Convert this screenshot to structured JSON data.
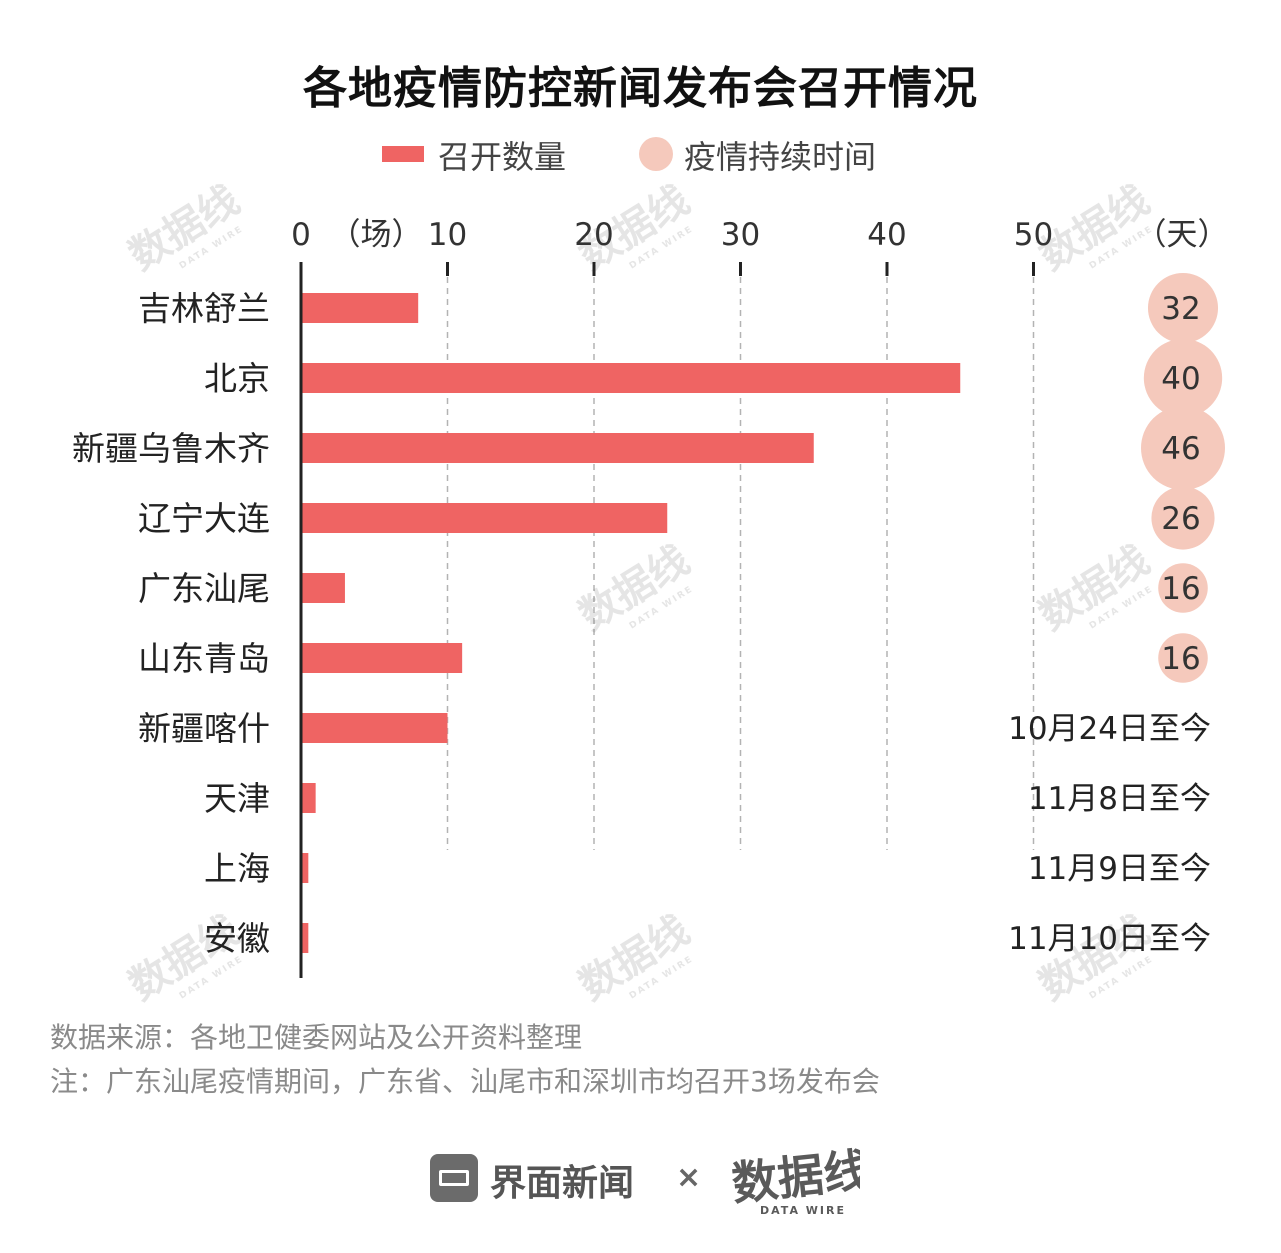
{
  "title": "各地疫情防控新闻发布会召开情况",
  "legend": {
    "bar_label": "召开数量",
    "dot_label": "疫情持续时间"
  },
  "colors": {
    "bar": "#ef6463",
    "bubble": "#f5c9bc",
    "axis": "#222222",
    "grid": "#b3b3b3"
  },
  "chart_data": {
    "type": "bar",
    "orientation": "horizontal",
    "x_unit_label": "（场）",
    "x_ticks": [
      "0",
      "10",
      "20",
      "30",
      "40",
      "50"
    ],
    "xlim": [
      0,
      50
    ],
    "grid": "vertical dashed",
    "categories": [
      "吉林舒兰",
      "北京",
      "新疆乌鲁木齐",
      "辽宁大连",
      "广东汕尾",
      "山东青岛",
      "新疆喀什",
      "天津",
      "上海",
      "安徽"
    ],
    "series": [
      {
        "name": "召开数量",
        "values": [
          8,
          45,
          35,
          25,
          3,
          11,
          10,
          1,
          0.5,
          0.5
        ]
      }
    ],
    "duration": {
      "name": "疫情持续时间",
      "unit_label": "（天）",
      "values": [
        32,
        40,
        46,
        26,
        16,
        16,
        null,
        null,
        null,
        null
      ],
      "value_labels": [
        "32",
        "40",
        "46",
        "26",
        "16",
        "16",
        "10月24日至今",
        "11月8日至今",
        "11月9日至今",
        "11月10日至今"
      ]
    }
  },
  "footnotes": {
    "source": "数据来源：各地卫健委网站及公开资料整理",
    "note": "注：广东汕尾疫情期间，广东省、汕尾市和深圳市均召开3场发布会"
  },
  "footer": {
    "brand1": "界面新闻",
    "separator": "×",
    "brand2": "数据线",
    "brand2_sub": "DATA WIRE"
  },
  "watermark": {
    "text": "数据线",
    "sub": "DATA WIRE"
  }
}
